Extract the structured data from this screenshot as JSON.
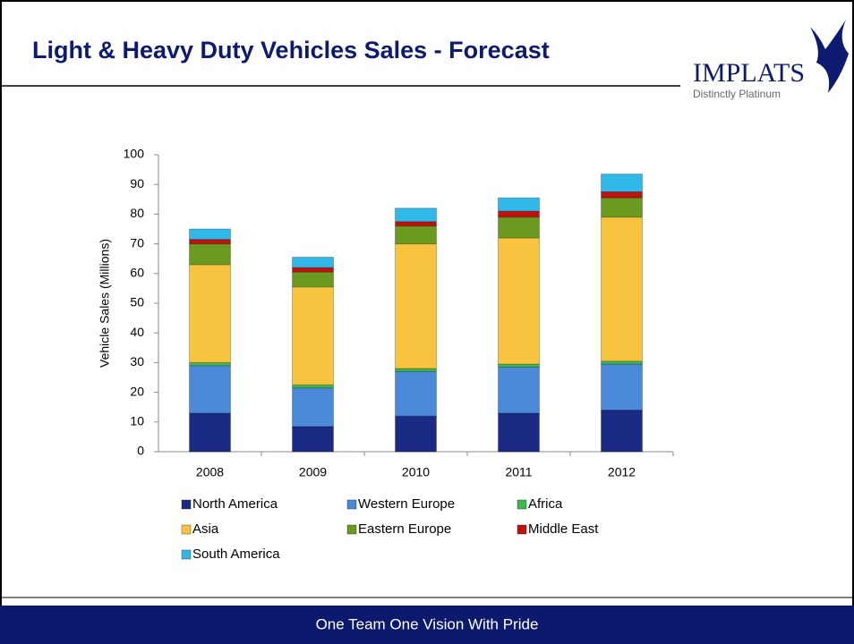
{
  "header": {
    "title": "Light & Heavy Duty Vehicles Sales - Forecast",
    "logo": "IMPLATS",
    "logo_tagline": "Distinctly Platinum"
  },
  "footer": {
    "text": "One Team One Vision With Pride"
  },
  "chart_data": {
    "type": "stacked_bar",
    "y_label": "Vehicle Sales (Millions)",
    "categories": [
      "2008",
      "2009",
      "2010",
      "2011",
      "2012"
    ],
    "series": [
      {
        "name": "North America",
        "color": "#1b2a84",
        "values": [
          13,
          8.5,
          12,
          13,
          14
        ]
      },
      {
        "name": "Western Europe",
        "color": "#4a8ad8",
        "values": [
          16,
          13,
          15,
          15.5,
          15.5
        ]
      },
      {
        "name": "Africa",
        "color": "#3cb84c",
        "values": [
          1,
          1,
          1,
          1,
          1
        ]
      },
      {
        "name": "Asia",
        "color": "#f8c440",
        "values": [
          33,
          33,
          42,
          42.5,
          48.5
        ]
      },
      {
        "name": "Eastern Europe",
        "color": "#6a9a20",
        "values": [
          7,
          5,
          6,
          7,
          6.5
        ]
      },
      {
        "name": "Middle East",
        "color": "#c01010",
        "values": [
          1.5,
          1.5,
          1.5,
          2,
          2
        ]
      },
      {
        "name": "South America",
        "color": "#30b8e8",
        "values": [
          3.5,
          3.5,
          4.5,
          4.5,
          6
        ]
      }
    ],
    "ylim": [
      0,
      100
    ],
    "yticks": [
      0,
      10,
      20,
      30,
      40,
      50,
      60,
      70,
      80,
      90,
      100
    ]
  }
}
